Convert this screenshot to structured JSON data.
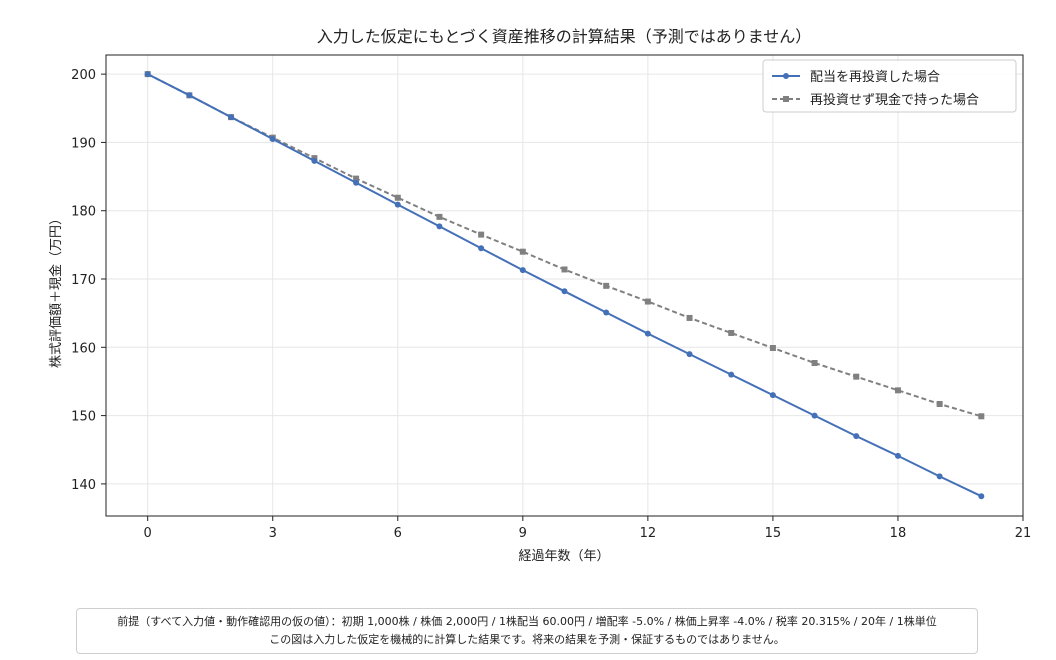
{
  "chart_data": {
    "type": "line",
    "title": "入力した仮定にもとづく資産推移の計算結果（予測ではありません）",
    "xlabel": "経過年数（年）",
    "ylabel": "株式評価額＋現金（万円）",
    "xlim": [
      -1,
      21
    ],
    "ylim": [
      135.3,
      202.8
    ],
    "xticks": [
      0,
      3,
      6,
      9,
      12,
      15,
      18,
      21
    ],
    "yticks": [
      140,
      150,
      160,
      170,
      180,
      190,
      200
    ],
    "grid": true,
    "legend_position": "top-right",
    "x": [
      0,
      1,
      2,
      3,
      4,
      5,
      6,
      7,
      8,
      9,
      10,
      11,
      12,
      13,
      14,
      15,
      16,
      17,
      18,
      19,
      20
    ],
    "series": [
      {
        "name": "配当を再投資した場合",
        "color": "#4470b8",
        "marker": "circle",
        "linestyle": "solid",
        "values": [
          200.0,
          196.9,
          193.7,
          190.5,
          187.3,
          184.1,
          180.9,
          177.7,
          174.5,
          171.3,
          168.2,
          165.1,
          162.0,
          159.0,
          156.0,
          153.0,
          150.0,
          147.0,
          144.1,
          141.1,
          138.2
        ]
      },
      {
        "name": "再投資せず現金で持った場合",
        "color": "#808080",
        "marker": "square",
        "linestyle": "dashed",
        "values": [
          200.0,
          196.9,
          193.7,
          190.7,
          187.7,
          184.7,
          181.9,
          179.1,
          176.5,
          174.0,
          171.4,
          169.0,
          166.7,
          164.3,
          162.1,
          159.9,
          157.7,
          155.7,
          153.7,
          151.7,
          149.9
        ]
      }
    ]
  },
  "note": {
    "line1": "前提（すべて入力値・動作確認用の仮の値）：初期 1,000株 / 株価 2,000円 / 1株配当 60.00円 / 増配率 -5.0% / 株価上昇率 -4.0% / 税率 20.315% / 20年 / 1株単位",
    "line2": "この図は入力した仮定を機械的に計算した結果です。将来の結果を予測・保証するものではありません。"
  }
}
